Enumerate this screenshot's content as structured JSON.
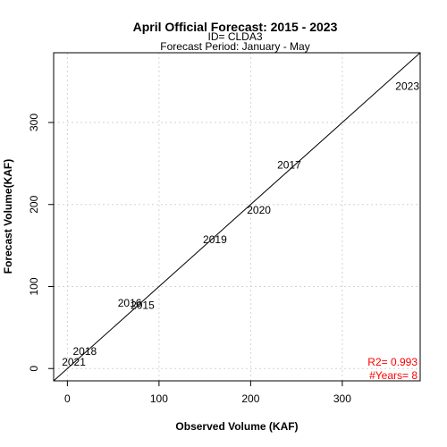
{
  "chart_data": {
    "type": "scatter",
    "title": "April Official Forecast: 2015 - 2023",
    "subtitle_lines": [
      "ID= CLDA3",
      "Forecast Period:  January - May"
    ],
    "xlabel": "Observed Volume (KAF)",
    "ylabel": "Forecast Volume(KAF)",
    "xlim": [
      -15,
      385
    ],
    "ylim": [
      -15,
      385
    ],
    "x_ticks": [
      0,
      100,
      200,
      300
    ],
    "y_ticks": [
      0,
      100,
      200,
      300
    ],
    "grid": true,
    "one_to_one_line": true,
    "points": [
      {
        "label": "2015",
        "x": 82,
        "y": 77
      },
      {
        "label": "2016",
        "x": 68,
        "y": 80
      },
      {
        "label": "2017",
        "x": 242,
        "y": 248
      },
      {
        "label": "2018",
        "x": 19,
        "y": 21
      },
      {
        "label": "2019",
        "x": 161,
        "y": 157
      },
      {
        "label": "2020",
        "x": 209,
        "y": 193
      },
      {
        "label": "2021",
        "x": 7,
        "y": 8
      },
      {
        "label": "2023",
        "x": 371,
        "y": 344
      }
    ],
    "stats": {
      "r2_text": "R2=  0.993",
      "years_text": "#Years=  8",
      "color": "#ff0000"
    }
  }
}
